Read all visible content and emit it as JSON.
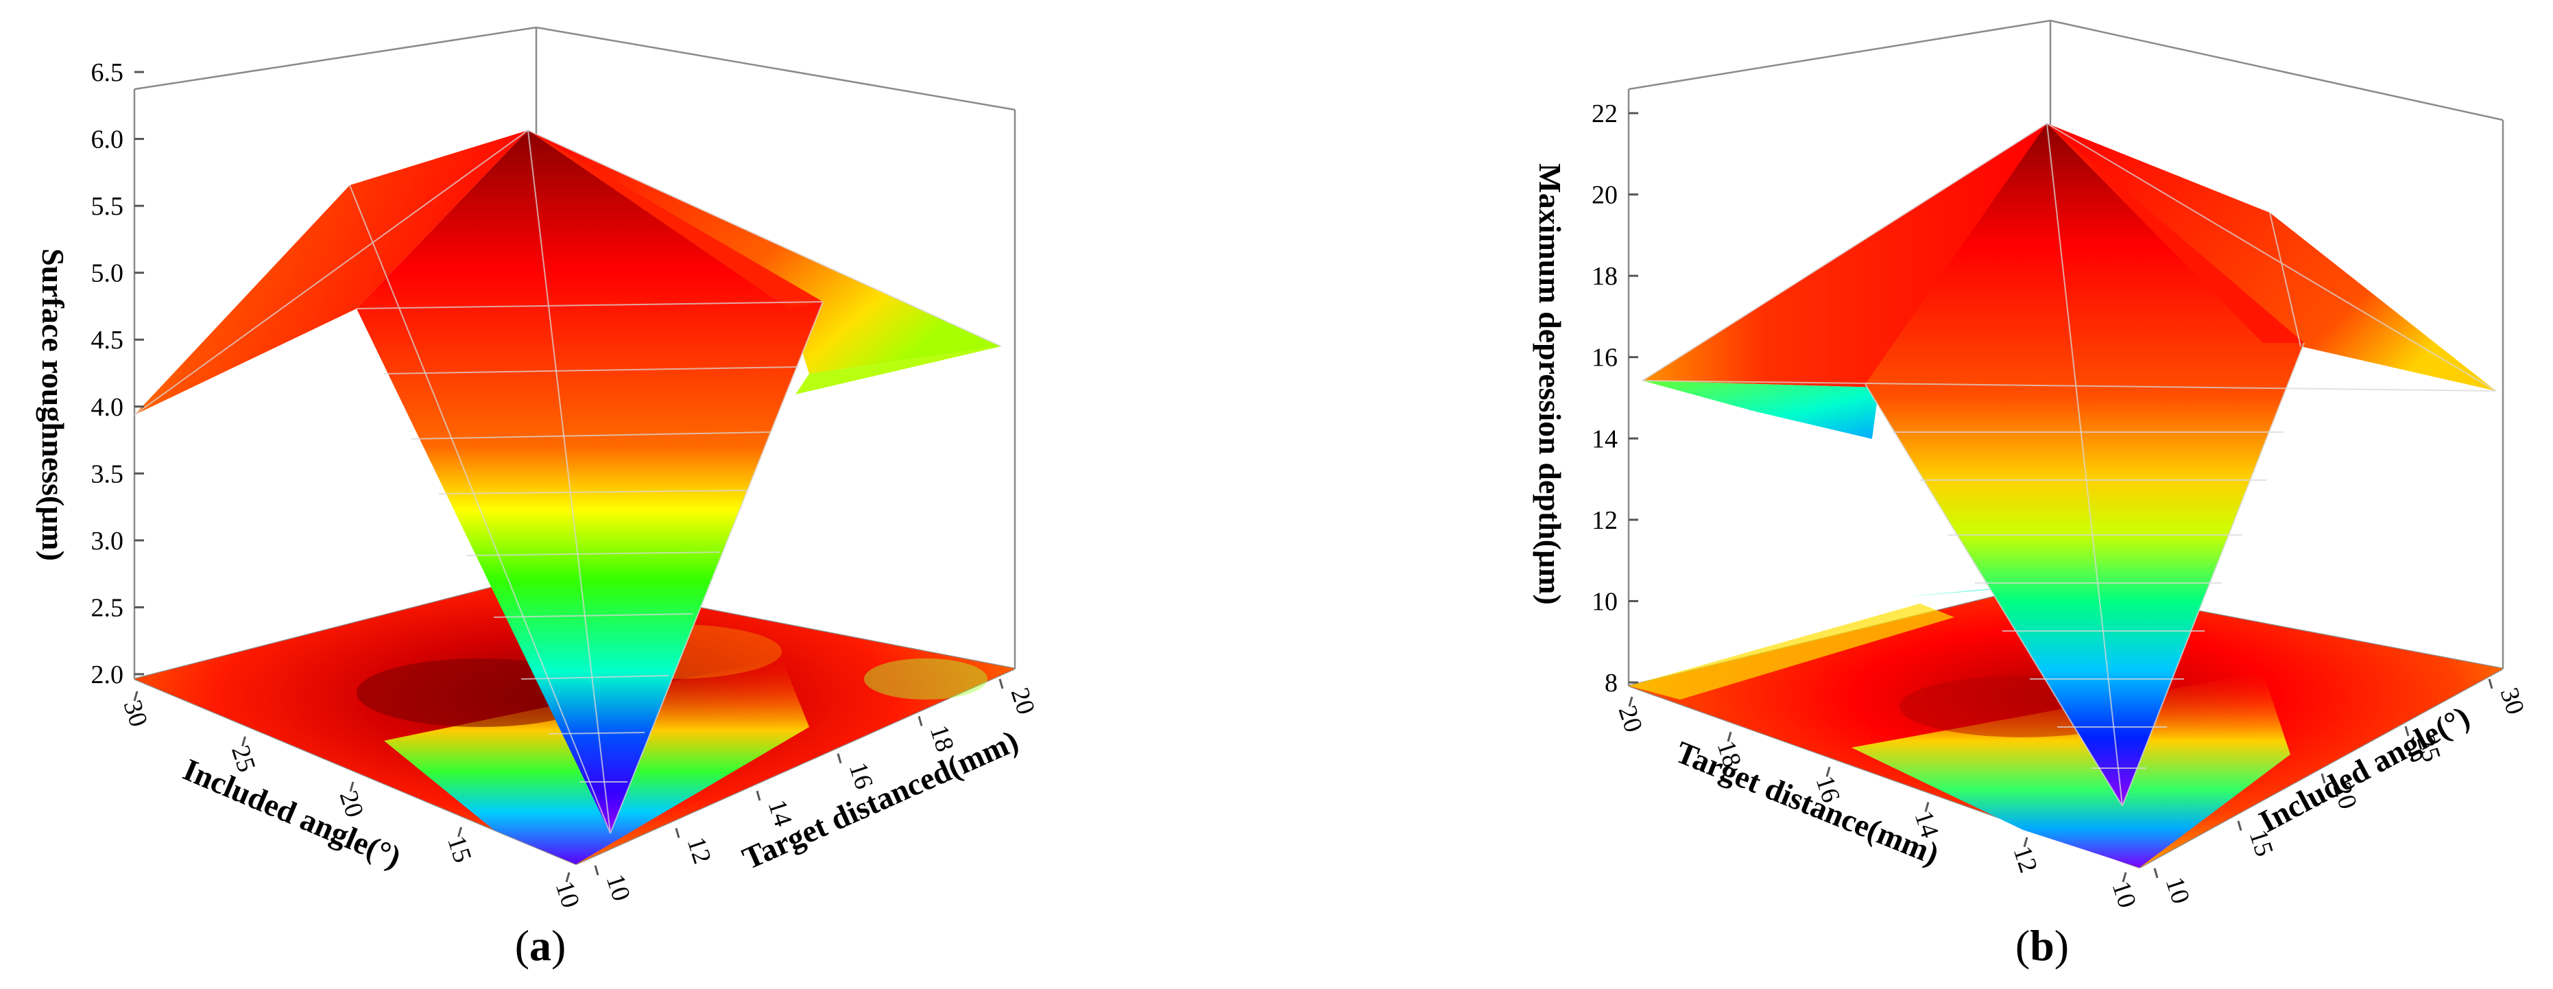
{
  "chart_data": [
    {
      "type": "surface",
      "panel": "a",
      "zlabel": "Surface roughness(μm)",
      "xlabel": "Included angle(°)",
      "ylabel": "Target distanced(mm)",
      "zticks": [
        "2.0",
        "2.5",
        "3.0",
        "3.5",
        "4.0",
        "4.5",
        "5.0",
        "5.5",
        "6.0",
        "6.5"
      ],
      "xticks": [
        "10",
        "15",
        "20",
        "25",
        "30"
      ],
      "yticks": [
        "10",
        "12",
        "14",
        "16",
        "18",
        "20"
      ],
      "zlim": [
        2.0,
        6.5
      ],
      "points": [
        {
          "x": 10,
          "y": 10,
          "z": 2.1
        },
        {
          "x": 20,
          "y": 15,
          "z": 6.1
        },
        {
          "x": 30,
          "y": 10,
          "z": 4.1
        },
        {
          "x": 30,
          "y": 20,
          "z": 5.7
        },
        {
          "x": 10,
          "y": 20,
          "z": 4.6
        }
      ],
      "colormap": [
        "#8a00ff",
        "#0000ff",
        "#00c8ff",
        "#00ff66",
        "#aaff00",
        "#ffff00",
        "#ff9900",
        "#ff0000",
        "#8b0000"
      ]
    },
    {
      "type": "surface",
      "panel": "b",
      "zlabel": "Maximum depression depth(μm)",
      "xlabel": "Target distance(mm)",
      "ylabel": "Included angle(°)",
      "zticks": [
        "8",
        "10",
        "12",
        "14",
        "16",
        "18",
        "20",
        "22"
      ],
      "xticks": [
        "10",
        "12",
        "14",
        "16",
        "18",
        "20"
      ],
      "yticks": [
        "10",
        "15",
        "20",
        "25",
        "30"
      ],
      "zlim": [
        8,
        23
      ],
      "points": [
        {
          "x": 10,
          "y": 10,
          "z": 8.3
        },
        {
          "x": 15,
          "y": 20,
          "z": 22.1
        },
        {
          "x": 20,
          "y": 10,
          "z": 16.0
        },
        {
          "x": 20,
          "y": 30,
          "z": 18.0
        },
        {
          "x": 10,
          "y": 30,
          "z": 16.0
        }
      ],
      "colormap": [
        "#8a00ff",
        "#0000ff",
        "#00c8ff",
        "#00ff66",
        "#aaff00",
        "#ffff00",
        "#ff9900",
        "#ff0000",
        "#8b0000"
      ]
    }
  ],
  "captions": {
    "a": "a",
    "b": "b"
  }
}
